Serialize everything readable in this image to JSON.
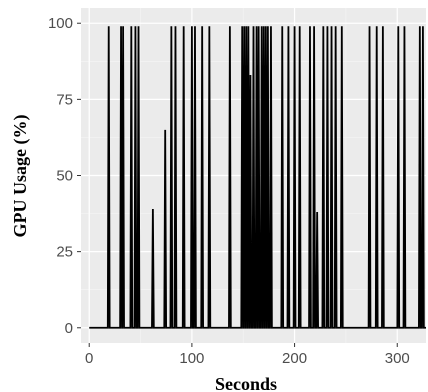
{
  "chart_data": {
    "type": "line",
    "title": "",
    "xlabel": "Seconds",
    "ylabel": "GPU Usage (%)",
    "xlim": [
      -8,
      328
    ],
    "ylim": [
      -5,
      105
    ],
    "x_ticks": [
      0,
      100,
      200,
      300
    ],
    "y_ticks": [
      0,
      25,
      50,
      75,
      100
    ],
    "x_tick_labels": [
      "0",
      "100",
      "200",
      "300"
    ],
    "y_tick_labels": [
      "0",
      "25",
      "50",
      "75",
      "100"
    ],
    "grid": true,
    "legend": "none",
    "colors": {
      "panel": "#ebebeb",
      "grid_major": "#ffffff",
      "grid_minor": "#f5f5f5",
      "line": "#000000"
    },
    "spikes": [
      {
        "x": 19,
        "y": 99
      },
      {
        "x": 31,
        "y": 99
      },
      {
        "x": 33,
        "y": 99
      },
      {
        "x": 41,
        "y": 99
      },
      {
        "x": 45,
        "y": 99
      },
      {
        "x": 48,
        "y": 99
      },
      {
        "x": 62,
        "y": 39
      },
      {
        "x": 74,
        "y": 65
      },
      {
        "x": 80,
        "y": 99
      },
      {
        "x": 84,
        "y": 99
      },
      {
        "x": 92,
        "y": 99
      },
      {
        "x": 100,
        "y": 99
      },
      {
        "x": 103,
        "y": 99
      },
      {
        "x": 110,
        "y": 99
      },
      {
        "x": 117,
        "y": 99
      },
      {
        "x": 137,
        "y": 99
      },
      {
        "x": 149,
        "y": 99
      },
      {
        "x": 151,
        "y": 99
      },
      {
        "x": 153,
        "y": 99
      },
      {
        "x": 155,
        "y": 99
      },
      {
        "x": 157,
        "y": 83
      },
      {
        "x": 160,
        "y": 99
      },
      {
        "x": 163,
        "y": 99
      },
      {
        "x": 165,
        "y": 99
      },
      {
        "x": 168,
        "y": 99
      },
      {
        "x": 170,
        "y": 99
      },
      {
        "x": 172,
        "y": 99
      },
      {
        "x": 174,
        "y": 99
      },
      {
        "x": 177,
        "y": 99
      },
      {
        "x": 188,
        "y": 99
      },
      {
        "x": 194,
        "y": 99
      },
      {
        "x": 200,
        "y": 99
      },
      {
        "x": 205,
        "y": 99
      },
      {
        "x": 215,
        "y": 99
      },
      {
        "x": 219,
        "y": 99
      },
      {
        "x": 222,
        "y": 38
      },
      {
        "x": 228,
        "y": 99
      },
      {
        "x": 232,
        "y": 99
      },
      {
        "x": 236,
        "y": 99
      },
      {
        "x": 240,
        "y": 99
      },
      {
        "x": 246,
        "y": 99
      },
      {
        "x": 273,
        "y": 99
      },
      {
        "x": 280,
        "y": 99
      },
      {
        "x": 286,
        "y": 99
      },
      {
        "x": 301,
        "y": 99
      },
      {
        "x": 307,
        "y": 99
      },
      {
        "x": 322,
        "y": 99
      },
      {
        "x": 325,
        "y": 99
      }
    ]
  }
}
